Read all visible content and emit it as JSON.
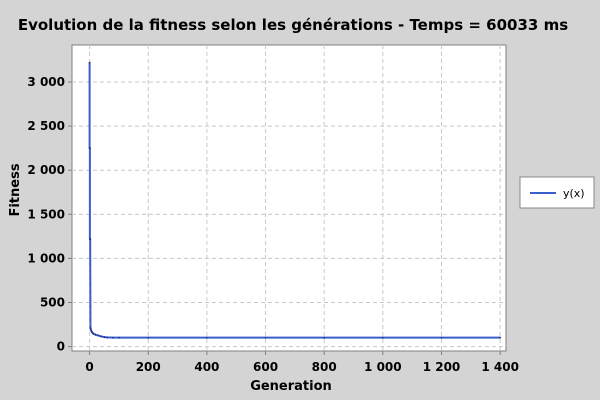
{
  "chart_data": {
    "type": "line",
    "title": "Evolution de la fitness selon les générations - Temps = 60033 ms",
    "xlabel": "Generation",
    "ylabel": "Fitness",
    "xlim": [
      -60,
      1420
    ],
    "ylim": [
      -50,
      3420
    ],
    "x_ticks": [
      0,
      200,
      400,
      600,
      800,
      1000,
      1200,
      1400
    ],
    "x_tick_labels": [
      "0",
      "200",
      "400",
      "600",
      "800",
      "1 000",
      "1 200",
      "1 400"
    ],
    "y_ticks": [
      0,
      500,
      1000,
      1500,
      2000,
      2500,
      3000
    ],
    "y_tick_labels": [
      "0",
      "500",
      "1 000",
      "1 500",
      "2 000",
      "2 500",
      "3 000"
    ],
    "grid": true,
    "legend_position": "right",
    "series": [
      {
        "name": "y(x)",
        "color": "#3a5fcd",
        "x": [
          0,
          0,
          1,
          1,
          2,
          3,
          5,
          8,
          12,
          20,
          30,
          40,
          50,
          60,
          80,
          100,
          200,
          400,
          600,
          800,
          1000,
          1200,
          1400
        ],
        "y": [
          3220,
          2250,
          2250,
          1220,
          1220,
          210,
          185,
          165,
          148,
          135,
          125,
          115,
          108,
          104,
          102,
          101,
          101,
          101,
          101,
          101,
          101,
          101,
          101
        ]
      }
    ]
  }
}
